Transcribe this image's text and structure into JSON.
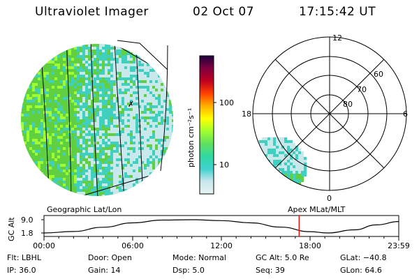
{
  "header": {
    "instrument": "Ultraviolet Imager",
    "date": "02 Oct 07",
    "time": "17:15:42 UT"
  },
  "colors": {
    "background": "#ffffff",
    "text": "#000000",
    "marker_line": "#ff0000"
  },
  "colorbar": {
    "label": "photon cm⁻²s⁻¹",
    "ticks": [
      "100",
      "10"
    ],
    "scale": "log",
    "stops": [
      "#e8f4f4",
      "#c8e8ec",
      "#40d0d0",
      "#30d8a0",
      "#60e060",
      "#a0ff30",
      "#ffff00",
      "#ffb000",
      "#ff4000",
      "#c00020",
      "#800040",
      "#200040"
    ]
  },
  "left_panel": {
    "name": "Geographic Lat/Lon",
    "fill_colors": [
      "#60d040",
      "#a0ff30",
      "#40d0c0",
      "#c8e8ec"
    ]
  },
  "right_panel": {
    "name": "Apex MLat/MLT",
    "mlt_labels": [
      "12",
      "18",
      "6",
      "0"
    ],
    "mlat_labels": [
      "60",
      "70",
      "80"
    ]
  },
  "altitude_plot": {
    "ylabel": "GC Alt",
    "yticks": [
      "9.0",
      "1.8"
    ],
    "xticks": [
      "00:00",
      "06:00",
      "12:00",
      "18:00",
      "23:59"
    ],
    "curve_alt": [
      1.8,
      2.6,
      4.9,
      7.3,
      8.8,
      9.0,
      8.5,
      7.3,
      5.0,
      2.5,
      1.8,
      3.5,
      6.2,
      8.0
    ],
    "curve_hours": [
      0,
      2,
      4,
      6,
      8,
      10,
      12,
      14,
      16,
      18,
      19.2,
      21,
      22.5,
      24
    ],
    "current_time_hour": 17.26
  },
  "info": {
    "row1": {
      "filter": "Flt: LBHL",
      "door": "Door: Open",
      "mode": "Mode: Normal",
      "gc_alt": "GC Alt: 5.0 Re",
      "glat": "GLat: −40.8"
    },
    "row2": {
      "ip": "IP: 36.0",
      "gain": "Gain: 14",
      "dsp": "Dsp:    5.0",
      "seq": "Seq: 39",
      "glon": "GLon:  64.6"
    }
  }
}
